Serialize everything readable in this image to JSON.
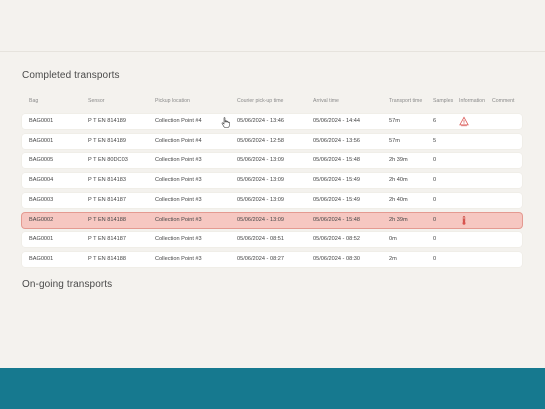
{
  "completed": {
    "title": "Completed transports",
    "columns": {
      "bag": "Bag",
      "sensor": "Sensor",
      "pickup": "Pickup location",
      "pickup_time": "Courier pick-up time",
      "arrival": "Arrival time",
      "transport_time": "Transport time",
      "samples": "Samples",
      "information": "Information",
      "comment": "Comment"
    },
    "rows": [
      {
        "bag": "BAG0001",
        "sensor": "P T EN 814189",
        "pickup": "Collection Point #4",
        "pickup_time": "05/06/2024 - 13:46",
        "arrival": "05/06/2024 - 14:44",
        "transport_time": "57m",
        "samples": "6",
        "info_icon": "temperature-alert-icon",
        "alert": false
      },
      {
        "bag": "BAG0001",
        "sensor": "P T EN 814189",
        "pickup": "Collection Point #4",
        "pickup_time": "05/06/2024 - 12:58",
        "arrival": "05/06/2024 - 13:56",
        "transport_time": "57m",
        "samples": "5",
        "info_icon": "",
        "alert": false
      },
      {
        "bag": "BAG0005",
        "sensor": "P T EN 80DC03",
        "pickup": "Collection Point #3",
        "pickup_time": "05/06/2024 - 13:09",
        "arrival": "05/06/2024 - 15:48",
        "transport_time": "2h 39m",
        "samples": "0",
        "info_icon": "",
        "alert": false
      },
      {
        "bag": "BAG0004",
        "sensor": "P T EN 814183",
        "pickup": "Collection Point #3",
        "pickup_time": "05/06/2024 - 13:09",
        "arrival": "05/06/2024 - 15:49",
        "transport_time": "2h 40m",
        "samples": "0",
        "info_icon": "",
        "alert": false
      },
      {
        "bag": "BAG0003",
        "sensor": "P T EN 814187",
        "pickup": "Collection Point #3",
        "pickup_time": "05/06/2024 - 13:09",
        "arrival": "05/06/2024 - 15:49",
        "transport_time": "2h 40m",
        "samples": "0",
        "info_icon": "",
        "alert": false
      },
      {
        "bag": "BAG0002",
        "sensor": "P T EN 814188",
        "pickup": "Collection Point #3",
        "pickup_time": "05/06/2024 - 13:09",
        "arrival": "05/06/2024 - 15:48",
        "transport_time": "2h 39m",
        "samples": "0",
        "info_icon": "thermometer-icon",
        "alert": true
      },
      {
        "bag": "BAG0001",
        "sensor": "P T EN 814187",
        "pickup": "Collection Point #3",
        "pickup_time": "05/06/2024 - 08:51",
        "arrival": "05/06/2024 - 08:52",
        "transport_time": "0m",
        "samples": "0",
        "info_icon": "",
        "alert": false
      },
      {
        "bag": "BAG0001",
        "sensor": "P T EN 814188",
        "pickup": "Collection Point #3",
        "pickup_time": "05/06/2024 - 08:27",
        "arrival": "05/06/2024 - 08:30",
        "transport_time": "2m",
        "samples": "0",
        "info_icon": "",
        "alert": false
      }
    ]
  },
  "ongoing": {
    "title": "On-going transports"
  },
  "colors": {
    "background": "#f4f2ee",
    "alert_row": "#f6c7c1",
    "alert_border": "#e49a91",
    "footer": "#16798f",
    "alert_icon": "#d9534f"
  }
}
